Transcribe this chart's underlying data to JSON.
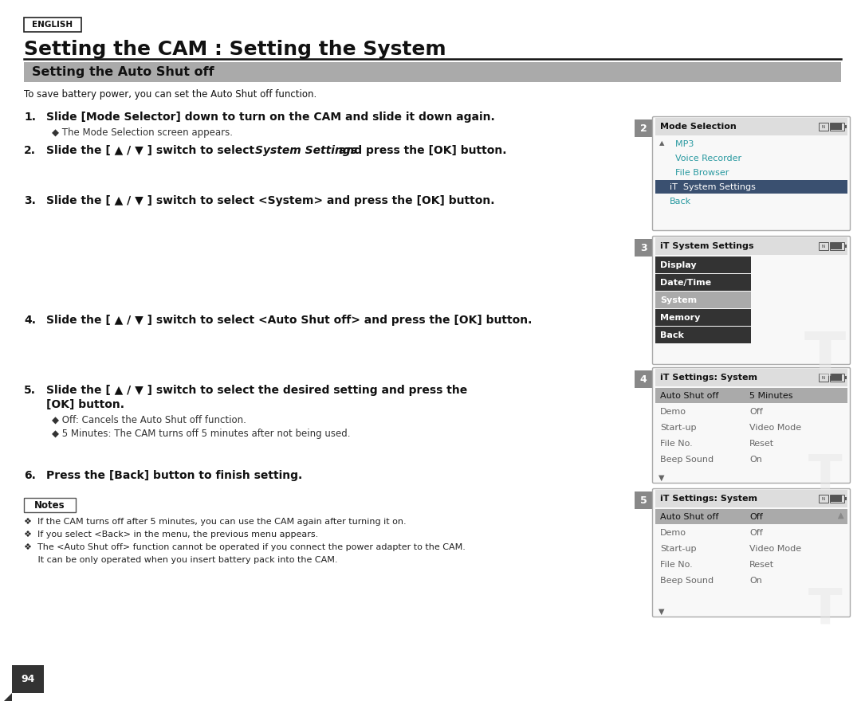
{
  "bg_color": "#ffffff",
  "page_width": 10.8,
  "page_height": 8.8,
  "english_label": "ENGLISH",
  "main_title": "Setting the CAM : Setting the System",
  "section_title": "Setting the Auto Shut off",
  "intro_text": "To save battery power, you can set the Auto Shut off function.",
  "notes_title": "Notes",
  "notes": [
    "❖  If the CAM turns off after 5 minutes, you can use the CAM again after turning it on.",
    "❖  If you select <Back> in the menu, the previous menu appears.",
    "❖  The <Auto Shut off> function cannot be operated if you connect the power adapter to the CAM.",
    "     It can be only operated when you insert battery pack into the CAM."
  ],
  "page_num": "94",
  "panel2": {
    "step": "2",
    "title": "Mode Selection",
    "has_up_arrow": true,
    "items": [
      {
        "text": "  MP3",
        "selected": false,
        "teal": true
      },
      {
        "text": "  Voice Recorder",
        "selected": false,
        "teal": true
      },
      {
        "text": "  File Browser",
        "selected": false,
        "teal": true
      },
      {
        "text": "iT  System Settings",
        "selected": true,
        "teal": false
      },
      {
        "text": "Back",
        "selected": false,
        "teal": true
      }
    ]
  },
  "panel3": {
    "step": "3",
    "title": "iT System Settings",
    "has_watermark": true,
    "items": [
      {
        "text": "Display",
        "style": "dark"
      },
      {
        "text": "Date/Time",
        "style": "dark"
      },
      {
        "text": "System",
        "style": "medium"
      },
      {
        "text": "Memory",
        "style": "dark"
      },
      {
        "text": "Back",
        "style": "dark"
      }
    ]
  },
  "panel4": {
    "step": "4",
    "title": "iT Settings: System",
    "has_down_arrow": true,
    "rows": [
      {
        "left": "Auto Shut off",
        "right": "5 Minutes",
        "hl": true
      },
      {
        "left": "Demo",
        "right": "Off",
        "hl": false
      },
      {
        "left": "Start-up",
        "right": "Video Mode",
        "hl": false
      },
      {
        "left": "File No.",
        "right": "Reset",
        "hl": false
      },
      {
        "left": "Beep Sound",
        "right": "On",
        "hl": false
      }
    ]
  },
  "panel5": {
    "step": "5",
    "title": "iT Settings: System",
    "has_up_arrow": true,
    "has_down_arrow": true,
    "rows": [
      {
        "left": "Auto Shut off",
        "right": "Off",
        "hl": true
      },
      {
        "left": "Demo",
        "right": "Off",
        "hl": false
      },
      {
        "left": "Start-up",
        "right": "Video Mode",
        "hl": false
      },
      {
        "left": "File No.",
        "right": "Reset",
        "hl": false
      },
      {
        "left": "Beep Sound",
        "right": "On",
        "hl": false
      }
    ]
  }
}
